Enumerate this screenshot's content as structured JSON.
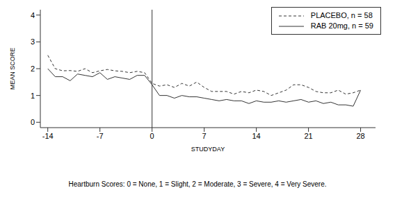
{
  "chart_data": {
    "type": "line",
    "x_label": "STUDYDAY",
    "y_label": "MEAN SCORE",
    "note": "Heartburn Scores: 0 = None, 1 = Slight, 2 = Moderate, 3 = Severe, 4 = Very Severe.",
    "x": [
      -14,
      -13,
      -12,
      -11,
      -10,
      -9,
      -8,
      -7,
      -6,
      -5,
      -4,
      -3,
      -2,
      -1,
      0,
      1,
      2,
      3,
      4,
      5,
      6,
      7,
      8,
      9,
      10,
      11,
      12,
      13,
      14,
      15,
      16,
      17,
      18,
      19,
      20,
      21,
      22,
      23,
      24,
      25,
      26,
      27,
      28
    ],
    "series": [
      {
        "name": "PLACEBO, n = 58",
        "color": "#333333",
        "line_style": "dashed",
        "values": [
          2.5,
          2.0,
          1.92,
          1.93,
          1.9,
          2.0,
          1.85,
          1.92,
          1.97,
          1.92,
          1.9,
          1.85,
          1.9,
          1.85,
          1.45,
          1.35,
          1.4,
          1.3,
          1.45,
          1.35,
          1.5,
          1.3,
          1.15,
          1.15,
          1.15,
          1.05,
          1.15,
          1.1,
          1.2,
          1.15,
          1.0,
          1.1,
          1.2,
          1.4,
          1.4,
          1.3,
          1.15,
          1.1,
          1.1,
          1.2,
          1.05,
          1.1,
          1.2
        ]
      },
      {
        "name": "RAB 20mg, n = 59",
        "color": "#333333",
        "line_style": "solid",
        "values": [
          2.0,
          1.7,
          1.7,
          1.55,
          1.8,
          1.75,
          1.7,
          1.85,
          1.6,
          1.7,
          1.65,
          1.6,
          1.75,
          1.75,
          1.4,
          1.0,
          1.0,
          0.9,
          1.0,
          0.95,
          0.95,
          0.9,
          0.85,
          0.8,
          0.85,
          0.8,
          0.8,
          0.7,
          0.8,
          0.75,
          0.75,
          0.8,
          0.75,
          0.8,
          0.85,
          0.75,
          0.8,
          0.7,
          0.75,
          0.65,
          0.65,
          0.6,
          1.2
        ]
      }
    ],
    "xlim": [
      -15,
      30
    ],
    "xticks": [
      -14,
      -7,
      0,
      7,
      14,
      21,
      28
    ],
    "ylim": [
      -0.2,
      4.2
    ],
    "yticks": [
      0,
      1,
      2,
      3,
      4
    ],
    "vline": 0,
    "legend": "top-right",
    "grid": false
  }
}
